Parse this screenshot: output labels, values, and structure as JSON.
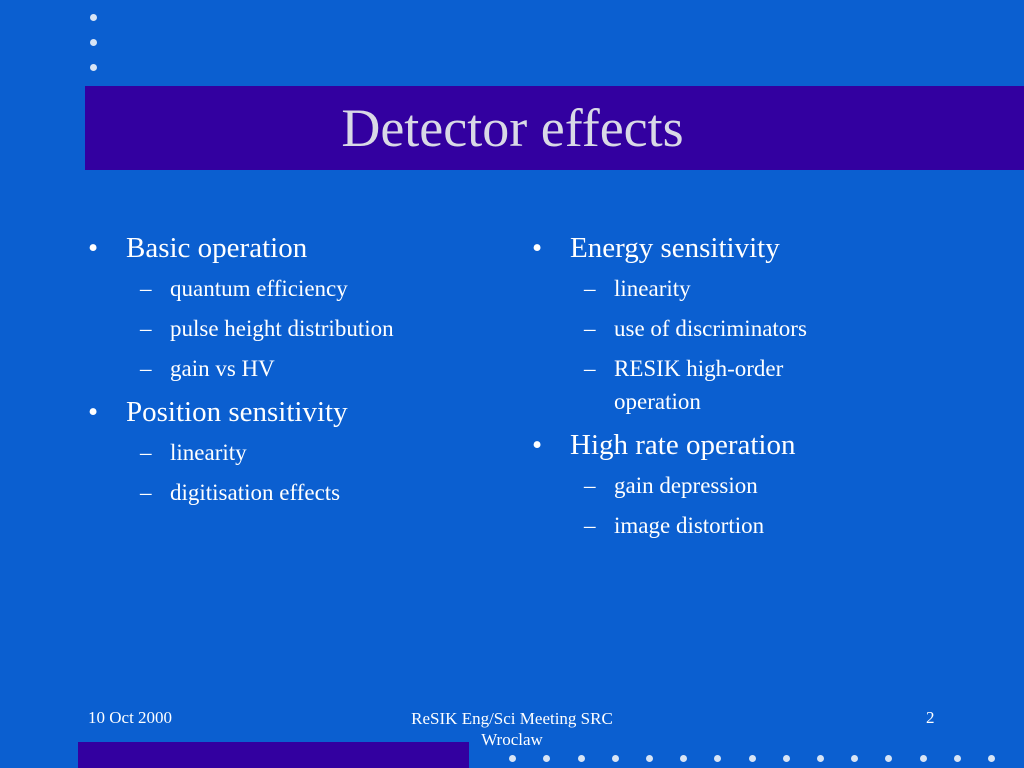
{
  "slide": {
    "title": "Detector effects",
    "left_column": [
      {
        "label": "Basic operation",
        "subitems": [
          "quantum efficiency",
          "pulse height distribution",
          "gain vs HV"
        ]
      },
      {
        "label": "Position sensitivity",
        "subitems": [
          "linearity",
          "digitisation effects"
        ]
      }
    ],
    "right_column": [
      {
        "label": "Energy sensitivity",
        "subitems": [
          "linearity",
          "use of discriminators",
          "RESIK high-order operation"
        ]
      },
      {
        "label": "High rate operation",
        "subitems": [
          "gain depression",
          "image distortion"
        ]
      }
    ],
    "bullet_glyph": "•",
    "sub_glyph": "–"
  },
  "footer": {
    "date": "10 Oct 2000",
    "meeting": "ReSIK Eng/Sci Meeting SRC Wroclaw",
    "page_number": "2"
  },
  "colors": {
    "background": "#0b5fd0",
    "band": "#3300a0",
    "title_text": "#d9d9e6"
  }
}
